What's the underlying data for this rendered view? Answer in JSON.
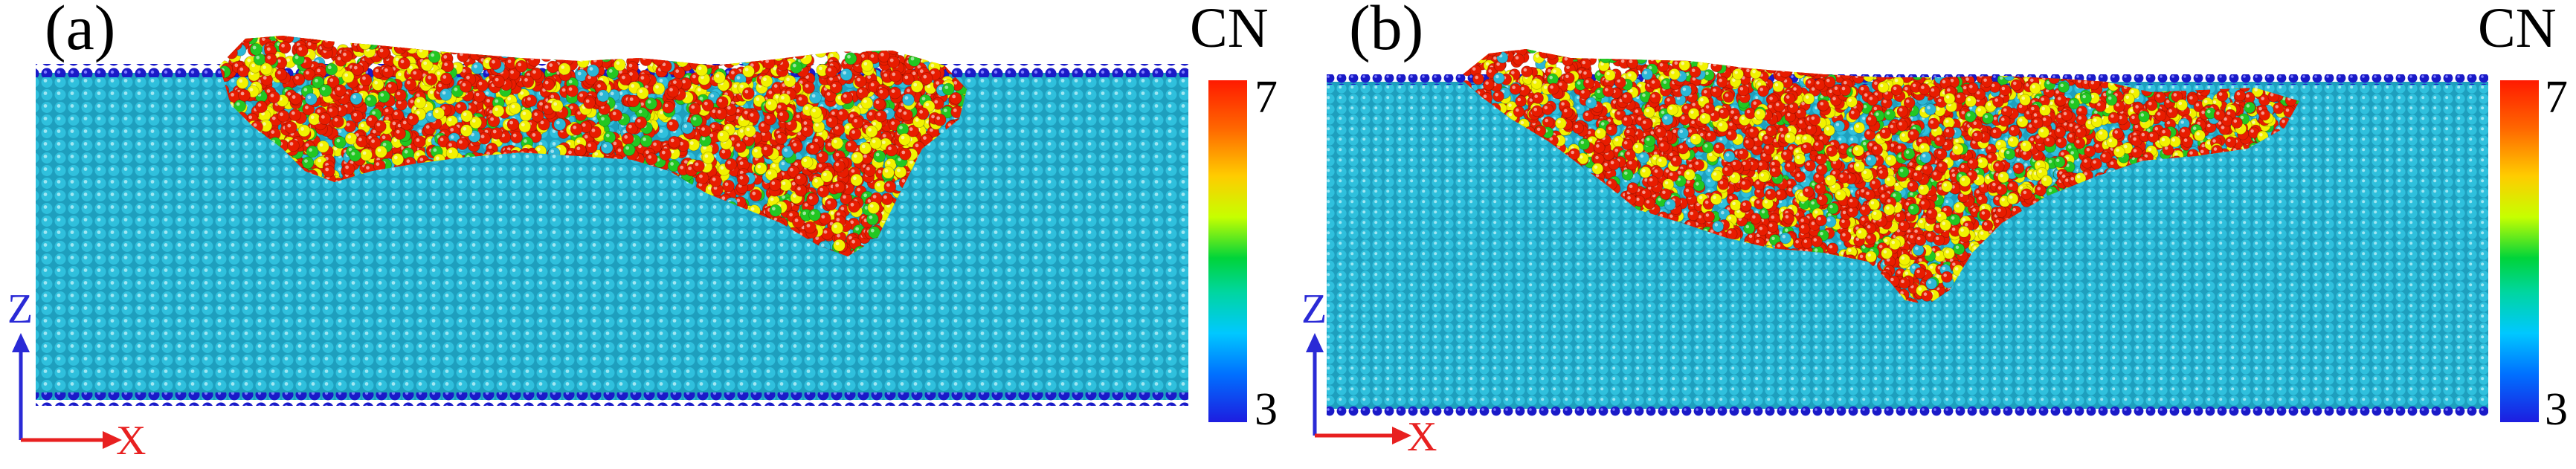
{
  "panels": [
    {
      "id": "a",
      "label": "(a)",
      "axes": {
        "z": "Z",
        "x": "X"
      },
      "colorbar": {
        "title": "CN",
        "max": "7",
        "min": "3"
      }
    },
    {
      "id": "b",
      "label": "(b)",
      "axes": {
        "z": "Z",
        "x": "X"
      },
      "colorbar": {
        "title": "CN",
        "max": "7",
        "min": "3"
      }
    }
  ],
  "colors": {
    "bulk_atom": "#2bb7d6",
    "surface_atom": "#1c1cc8",
    "cn_high": "#e81c00",
    "cn_mid": "#f2f200",
    "cn_low": "#22c722"
  }
}
